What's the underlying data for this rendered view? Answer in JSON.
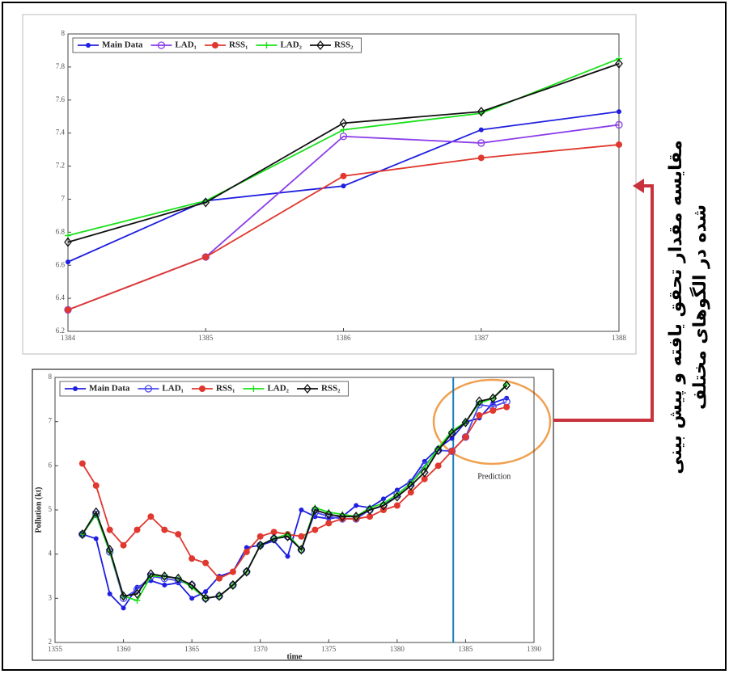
{
  "chart_data": [
    {
      "type": "line",
      "xlim": [
        1384,
        1388
      ],
      "xticks": [
        1384,
        1385,
        1386,
        1387,
        1388
      ],
      "ylim": [
        6.2,
        8
      ],
      "yticks": [
        6.2,
        6.4,
        6.6,
        6.8,
        7,
        7.2,
        7.4,
        7.6,
        7.8,
        8
      ],
      "legend": "upper left",
      "x": [
        1384,
        1385,
        1386,
        1387,
        1388
      ],
      "series": [
        {
          "name": "Main Data",
          "color": "#1f1fe0",
          "marker": "dot",
          "values": [
            6.62,
            6.99,
            7.08,
            7.42,
            7.53
          ]
        },
        {
          "name": "LAD₁",
          "color": "#8a3ce8",
          "marker": "circle",
          "values": [
            6.33,
            6.65,
            7.38,
            7.34,
            7.45
          ]
        },
        {
          "name": "RSS₁",
          "color": "#e0382e",
          "marker": "filled-circle",
          "values": [
            6.33,
            6.65,
            7.14,
            7.25,
            7.33
          ]
        },
        {
          "name": "LAD₂",
          "color": "#19e019",
          "marker": "plus",
          "values": [
            6.78,
            6.99,
            7.42,
            7.52,
            7.85
          ]
        },
        {
          "name": "RSS₂",
          "color": "#111111",
          "marker": "diamond",
          "values": [
            6.74,
            6.98,
            7.46,
            7.53,
            7.82
          ]
        }
      ]
    },
    {
      "type": "line",
      "xlim": [
        1355,
        1390
      ],
      "xticks": [
        1355,
        1360,
        1365,
        1370,
        1375,
        1380,
        1385,
        1390
      ],
      "ylim": [
        2,
        8
      ],
      "yticks": [
        2,
        3,
        4,
        5,
        6,
        7,
        8
      ],
      "legend": "upper left",
      "x_label": "time",
      "y_label": "Pollution (kt)",
      "prediction_start": 1384.1,
      "prediction_label": "Prediction",
      "x": [
        1357,
        1358,
        1359,
        1360,
        1361,
        1362,
        1363,
        1364,
        1365,
        1366,
        1367,
        1368,
        1369,
        1370,
        1371,
        1372,
        1373,
        1374,
        1375,
        1376,
        1377,
        1378,
        1379,
        1380,
        1381,
        1382,
        1383,
        1384,
        1385,
        1386,
        1387,
        1388
      ],
      "series": [
        {
          "name": "Main Data",
          "color": "#1f1fe0",
          "marker": "dot",
          "values": [
            4.45,
            4.35,
            3.1,
            2.78,
            3.25,
            3.4,
            3.3,
            3.35,
            3.0,
            3.15,
            3.5,
            3.6,
            4.15,
            4.2,
            4.3,
            3.95,
            5.0,
            4.85,
            4.8,
            4.85,
            5.1,
            5.05,
            5.25,
            5.45,
            5.65,
            6.1,
            6.4,
            6.62,
            6.99,
            7.08,
            7.42,
            7.53
          ]
        },
        {
          "name": "LAD₁",
          "color": "#4a4af0",
          "marker": "circle",
          "values": [
            4.45,
            4.9,
            4.05,
            3.0,
            3.2,
            3.5,
            3.45,
            3.4,
            3.3,
            3.0,
            3.05,
            3.3,
            3.6,
            4.2,
            4.35,
            4.4,
            4.1,
            4.95,
            4.85,
            4.8,
            4.8,
            5.0,
            5.1,
            5.35,
            5.6,
            6.0,
            6.35,
            6.33,
            6.65,
            7.38,
            7.34,
            7.45
          ]
        },
        {
          "name": "RSS₁",
          "color": "#e0382e",
          "marker": "filled-circle",
          "values": [
            6.05,
            5.55,
            4.55,
            4.2,
            4.55,
            4.85,
            4.55,
            4.45,
            3.9,
            3.8,
            3.45,
            3.6,
            4.05,
            4.4,
            4.5,
            4.45,
            4.4,
            4.55,
            4.7,
            4.8,
            4.8,
            4.85,
            5.0,
            5.1,
            5.4,
            5.7,
            6.0,
            6.33,
            6.65,
            7.14,
            7.25,
            7.33
          ]
        },
        {
          "name": "LAD₂",
          "color": "#19e019",
          "marker": "plus",
          "values": [
            4.45,
            4.9,
            4.05,
            3.05,
            2.95,
            3.5,
            3.5,
            3.45,
            3.25,
            3.0,
            3.05,
            3.3,
            3.6,
            4.2,
            4.35,
            4.45,
            4.1,
            5.05,
            4.95,
            4.9,
            4.85,
            5.05,
            5.15,
            5.35,
            5.6,
            5.95,
            6.4,
            6.78,
            6.99,
            7.42,
            7.52,
            7.85
          ]
        },
        {
          "name": "RSS₂",
          "color": "#111111",
          "marker": "diamond",
          "values": [
            4.45,
            4.95,
            4.1,
            3.05,
            3.1,
            3.55,
            3.5,
            3.45,
            3.3,
            3.0,
            3.05,
            3.3,
            3.6,
            4.2,
            4.35,
            4.4,
            4.1,
            5.0,
            4.9,
            4.85,
            4.85,
            5.0,
            5.1,
            5.3,
            5.55,
            5.85,
            6.35,
            6.74,
            6.98,
            7.46,
            7.53,
            7.82
          ]
        }
      ]
    }
  ],
  "side_note": {
    "lines": [
      "مقایسه مقدار تحقق یافته و پیش بینی",
      "شده در الگوهای مختلف"
    ]
  }
}
